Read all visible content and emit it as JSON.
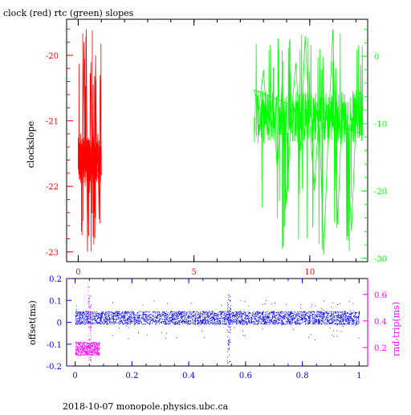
{
  "page": {
    "title": "clock (red) rtc (green) slopes",
    "footer": "2018-10-07  monopole.physics.ubc.ca"
  },
  "colors": {
    "clock": "#ff0000",
    "rtc": "#00ff00",
    "offset": "#0000ff",
    "rndtrip": "#ff00ff",
    "frame": "#000000"
  },
  "chart_data": [
    {
      "type": "line",
      "title": "clock (red) rtc (green) slopes",
      "ylabel": "clockslope",
      "xlim": [
        -0.5,
        12.5
      ],
      "ylim_left": [
        -23.15,
        -19.45
      ],
      "ylim_right": [
        -30.5,
        5.5
      ],
      "x_ticks": [
        0,
        5,
        10
      ],
      "y_ticks_left": [
        -20,
        -21,
        -22,
        -23
      ],
      "y_ticks_right": [
        0,
        -10,
        -20,
        -30
      ],
      "series": [
        {
          "name": "clock",
          "axis": "left",
          "x_range": [
            0,
            1.0
          ],
          "baseline": -21.6,
          "min": -23.0,
          "max": -19.6,
          "points": [
            [
              0.0,
              -21.4
            ],
            [
              0.05,
              -21.9
            ],
            [
              0.1,
              -21.2
            ],
            [
              0.15,
              -22.3
            ],
            [
              0.2,
              -21.5
            ],
            [
              0.25,
              -19.8
            ],
            [
              0.3,
              -22.0
            ],
            [
              0.35,
              -19.6
            ],
            [
              0.4,
              -23.0
            ],
            [
              0.45,
              -21.3
            ],
            [
              0.5,
              -22.1
            ],
            [
              0.55,
              -20.1
            ],
            [
              0.6,
              -21.8
            ],
            [
              0.65,
              -21.1
            ],
            [
              0.7,
              -22.4
            ],
            [
              0.75,
              -20.0
            ],
            [
              0.8,
              -21.7
            ],
            [
              0.85,
              -21.2
            ],
            [
              0.9,
              -22.5
            ],
            [
              0.95,
              -20.3
            ],
            [
              1.0,
              -21.6
            ]
          ]
        },
        {
          "name": "rtc",
          "axis": "right",
          "x_range": [
            7.6,
            12.3
          ],
          "baseline": -9.0,
          "min": -29.5,
          "max": 4.0,
          "points": [
            [
              7.6,
              -5.0
            ],
            [
              7.8,
              -8.0
            ],
            [
              8.0,
              -2.0
            ],
            [
              8.2,
              -12.0
            ],
            [
              8.4,
              -6.0
            ],
            [
              8.6,
              -17.0
            ],
            [
              8.8,
              -4.0
            ],
            [
              9.0,
              -22.0
            ],
            [
              9.2,
              -9.0
            ],
            [
              9.4,
              -1.0
            ],
            [
              9.6,
              -14.0
            ],
            [
              9.8,
              3.0
            ],
            [
              10.0,
              -10.0
            ],
            [
              10.2,
              -20.0
            ],
            [
              10.4,
              -8.0
            ],
            [
              10.6,
              -29.5
            ],
            [
              10.8,
              -11.0
            ],
            [
              11.0,
              4.0
            ],
            [
              11.2,
              -25.0
            ],
            [
              11.4,
              -7.0
            ],
            [
              11.6,
              -12.0
            ],
            [
              11.8,
              -26.0
            ],
            [
              12.0,
              -9.0
            ],
            [
              12.2,
              -5.0
            ],
            [
              12.3,
              -8.0
            ]
          ]
        }
      ]
    },
    {
      "type": "scatter",
      "ylabel": "offset(ms)",
      "ylabel_right": "rnd-trip(ms)",
      "xlim": [
        -0.03,
        1.03
      ],
      "ylim_left": [
        -0.2,
        0.2
      ],
      "ylim_right": [
        0.06,
        0.72
      ],
      "x_ticks": [
        "0",
        "0.2",
        "0.4",
        "0.6",
        "0.8",
        "1"
      ],
      "y_ticks_left": [
        "0.2",
        "0.1",
        "0",
        "-0.1",
        "-0.2"
      ],
      "y_ticks_right": [
        "0.6",
        "0.4",
        "0.2"
      ],
      "series": [
        {
          "name": "offset",
          "axis": "left",
          "x_range": [
            0,
            1
          ],
          "band": [
            -0.01,
            0.05
          ],
          "spike_x": 0.54,
          "spike_range": [
            -0.195,
            0.13
          ]
        },
        {
          "name": "rnd-trip",
          "axis": "right",
          "x_range": [
            0,
            0.085
          ],
          "band": [
            0.14,
            0.24
          ],
          "spike_x": 0.05,
          "spike_range": [
            0.1,
            0.66
          ]
        }
      ]
    }
  ]
}
